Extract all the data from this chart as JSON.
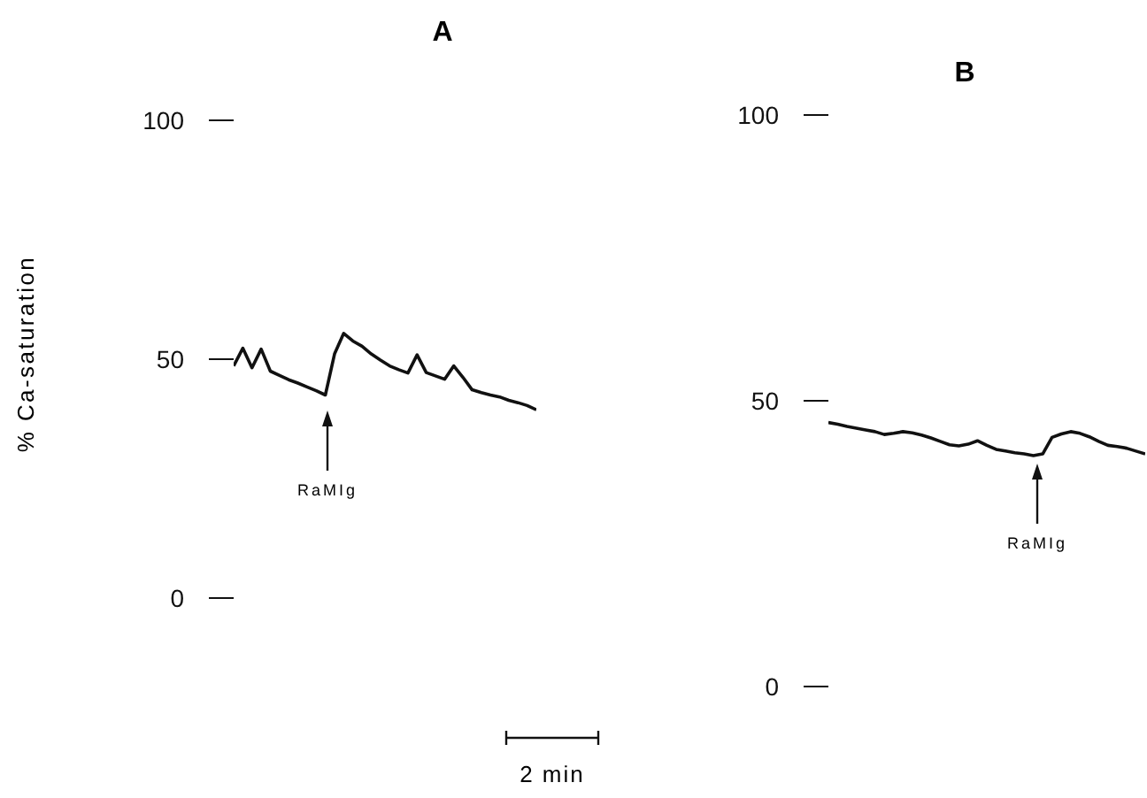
{
  "chart_data": [
    {
      "type": "line",
      "title": "A",
      "ylabel": "% Ca-saturation",
      "categories": [
        null,
        null,
        null,
        null,
        null,
        null,
        null,
        null,
        null,
        null,
        null,
        null,
        null,
        null,
        null,
        null,
        null,
        null,
        null,
        null,
        null,
        null,
        null,
        null,
        null,
        null,
        null,
        null,
        null,
        null,
        null,
        null,
        null,
        null
      ],
      "ylim": [
        0,
        100
      ],
      "yticks": [
        0,
        50,
        100
      ],
      "tick_labels": "y",
      "grid": false,
      "legend": false,
      "marker": "none",
      "line_style": "solid",
      "series": [
        {
          "color": "#111111",
          "values": [
            48.6,
            52.3,
            48.2,
            52.1,
            47.5,
            46.6,
            45.7,
            45.0,
            44.2,
            43.4,
            42.5,
            51.1,
            55.4,
            53.8,
            52.7,
            51.1,
            49.8,
            48.6,
            47.8,
            47.1,
            50.9,
            47.2,
            46.5,
            45.8,
            48.6,
            46.2,
            43.6,
            43.0,
            42.5,
            42.1,
            41.4,
            40.9,
            40.3,
            39.4
          ]
        }
      ],
      "annotations": [
        "RaMIg",
        "2 min"
      ]
    },
    {
      "type": "line",
      "title": "B",
      "categories": [
        null,
        null,
        null,
        null,
        null,
        null,
        null,
        null,
        null,
        null,
        null,
        null,
        null,
        null,
        null,
        null,
        null,
        null,
        null,
        null,
        null,
        null,
        null,
        null,
        null,
        null,
        null,
        null,
        null,
        null,
        null,
        null,
        null,
        null,
        null
      ],
      "ylim": [
        0,
        100
      ],
      "yticks": [
        0,
        50,
        100
      ],
      "tick_labels": "y",
      "grid": false,
      "legend": false,
      "marker": "none",
      "line_style": "solid",
      "series": [
        {
          "color": "#111111",
          "values": [
            46.2,
            45.9,
            45.5,
            45.2,
            44.9,
            44.6,
            44.1,
            44.3,
            44.6,
            44.4,
            44.0,
            43.5,
            42.9,
            42.3,
            42.1,
            42.4,
            43.0,
            42.2,
            41.5,
            41.2,
            40.9,
            40.7,
            40.4,
            40.7,
            43.6,
            44.2,
            44.6,
            44.3,
            43.7,
            42.9,
            42.2,
            42.0,
            41.7,
            41.2,
            40.7
          ]
        }
      ],
      "annotations": [
        "RaMIg"
      ]
    }
  ]
}
